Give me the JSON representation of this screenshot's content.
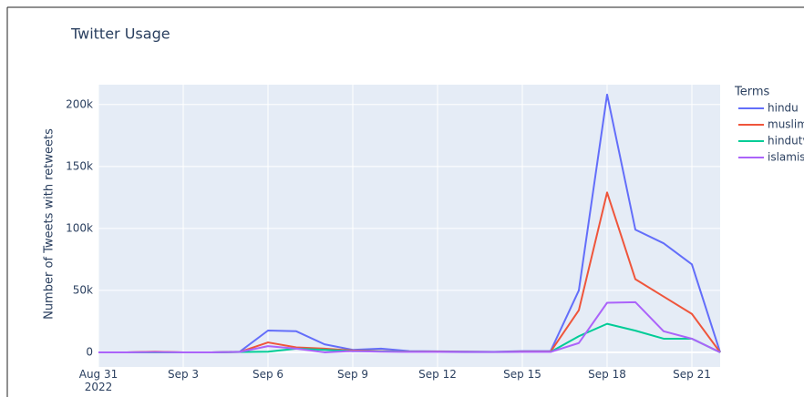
{
  "chart_data": {
    "type": "line",
    "title": "Twitter Usage",
    "y_label": "Number of Tweets with retweets",
    "legend_title": "Terms",
    "legend": "right",
    "grid": true,
    "x": [
      "2022-08-31",
      "2022-09-01",
      "2022-09-02",
      "2022-09-03",
      "2022-09-04",
      "2022-09-05",
      "2022-09-06",
      "2022-09-07",
      "2022-09-08",
      "2022-09-09",
      "2022-09-10",
      "2022-09-11",
      "2022-09-12",
      "2022-09-13",
      "2022-09-14",
      "2022-09-15",
      "2022-09-16",
      "2022-09-17",
      "2022-09-18",
      "2022-09-19",
      "2022-09-20",
      "2022-09-21",
      "2022-09-22"
    ],
    "series": [
      {
        "name": "hindu",
        "color": "#636efa",
        "values": [
          0,
          0,
          300,
          0,
          0,
          500,
          17600,
          17000,
          6500,
          2000,
          3000,
          1000,
          800,
          600,
          400,
          1000,
          1000,
          50000,
          208000,
          99000,
          88000,
          71000,
          0
        ]
      },
      {
        "name": "muslim",
        "color": "#ef553b",
        "values": [
          0,
          0,
          500,
          0,
          0,
          300,
          8000,
          4000,
          3000,
          1500,
          1000,
          500,
          500,
          400,
          300,
          500,
          500,
          34000,
          129000,
          59000,
          45000,
          31000,
          0
        ]
      },
      {
        "name": "hindutv",
        "color": "#00cc96",
        "values": [
          0,
          0,
          0,
          0,
          0,
          200,
          500,
          3000,
          2000,
          1000,
          800,
          400,
          300,
          200,
          200,
          300,
          300,
          13000,
          23000,
          17500,
          11000,
          11000,
          0
        ]
      },
      {
        "name": "islamist",
        "color": "#ab63fa",
        "values": [
          0,
          0,
          200,
          0,
          0,
          300,
          5000,
          3000,
          0,
          1000,
          500,
          300,
          300,
          200,
          200,
          300,
          300,
          7500,
          40000,
          40500,
          17000,
          11000,
          0
        ]
      }
    ],
    "xlim": [
      "2022-08-31",
      "2022-09-22"
    ],
    "xticks": [
      {
        "value": "2022-08-31",
        "label": "Aug 31\n2022"
      },
      {
        "value": "2022-09-03",
        "label": "Sep 3"
      },
      {
        "value": "2022-09-06",
        "label": "Sep 6"
      },
      {
        "value": "2022-09-09",
        "label": "Sep 9"
      },
      {
        "value": "2022-09-12",
        "label": "Sep 12"
      },
      {
        "value": "2022-09-15",
        "label": "Sep 15"
      },
      {
        "value": "2022-09-18",
        "label": "Sep 18"
      },
      {
        "value": "2022-09-21",
        "label": "Sep 21"
      }
    ],
    "ylim": [
      -11800,
      216000
    ],
    "yticks": [
      0,
      {
        "value": 50000,
        "label": "50k"
      },
      {
        "value": 100000,
        "label": "100k"
      },
      {
        "value": 150000,
        "label": "150k"
      },
      {
        "value": 200000,
        "label": "200k"
      }
    ]
  }
}
